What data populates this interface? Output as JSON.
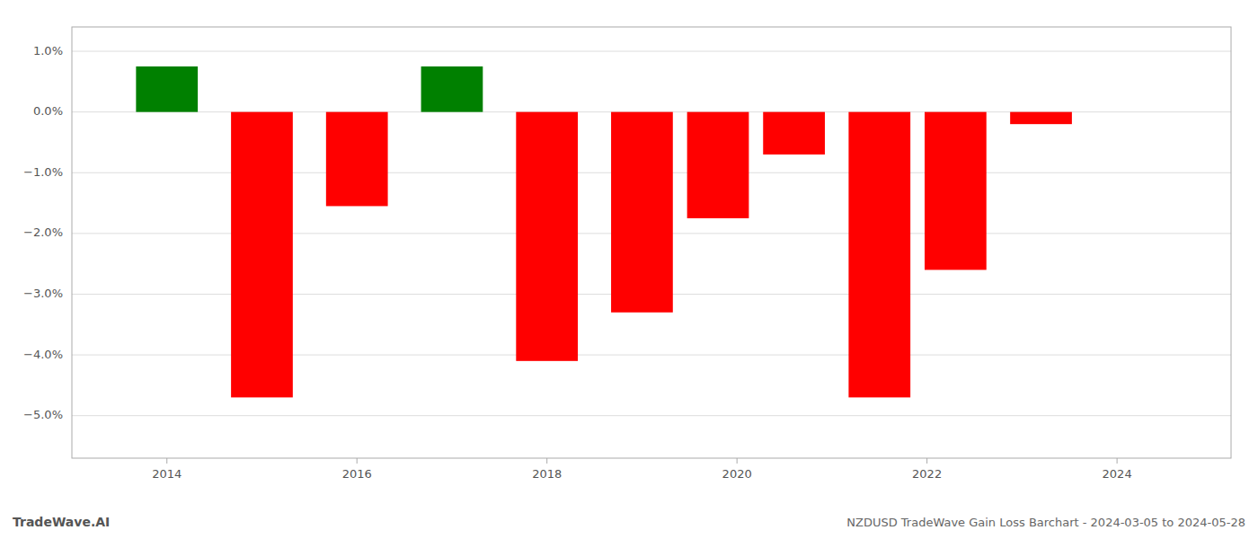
{
  "chart_data": {
    "type": "bar",
    "title": "NZDUSD TradeWave Gain Loss Barchart - 2024-03-05 to 2024-05-28",
    "annotations": [
      "TradeWave.AI"
    ],
    "x": [
      2014,
      2015,
      2016,
      2017,
      2018,
      2019,
      2019.8,
      2020.6,
      2021.5,
      2022.3,
      2023.2
    ],
    "values": [
      0.0075,
      -0.047,
      -0.0155,
      0.0075,
      -0.041,
      -0.033,
      -0.0175,
      -0.007,
      -0.047,
      -0.026,
      -0.002
    ],
    "colors": [
      "#008000",
      "#ff0000",
      "#ff0000",
      "#008000",
      "#ff0000",
      "#ff0000",
      "#ff0000",
      "#ff0000",
      "#ff0000",
      "#ff0000",
      "#ff0000"
    ],
    "xlim": [
      2013.0,
      2025.2
    ],
    "xticks": [
      2014,
      2016,
      2018,
      2020,
      2022,
      2024
    ],
    "ylim": [
      -0.057,
      0.014
    ],
    "yticks": [
      {
        "value": -0.05,
        "label": "−5.0%"
      },
      {
        "value": -0.04,
        "label": "−4.0%"
      },
      {
        "value": -0.03,
        "label": "−3.0%"
      },
      {
        "value": -0.02,
        "label": "−2.0%"
      },
      {
        "value": -0.01,
        "label": "−1.0%"
      },
      {
        "value": 0.0,
        "label": "0.0%"
      },
      {
        "value": 0.01,
        "label": "1.0%"
      }
    ],
    "grid": true
  }
}
